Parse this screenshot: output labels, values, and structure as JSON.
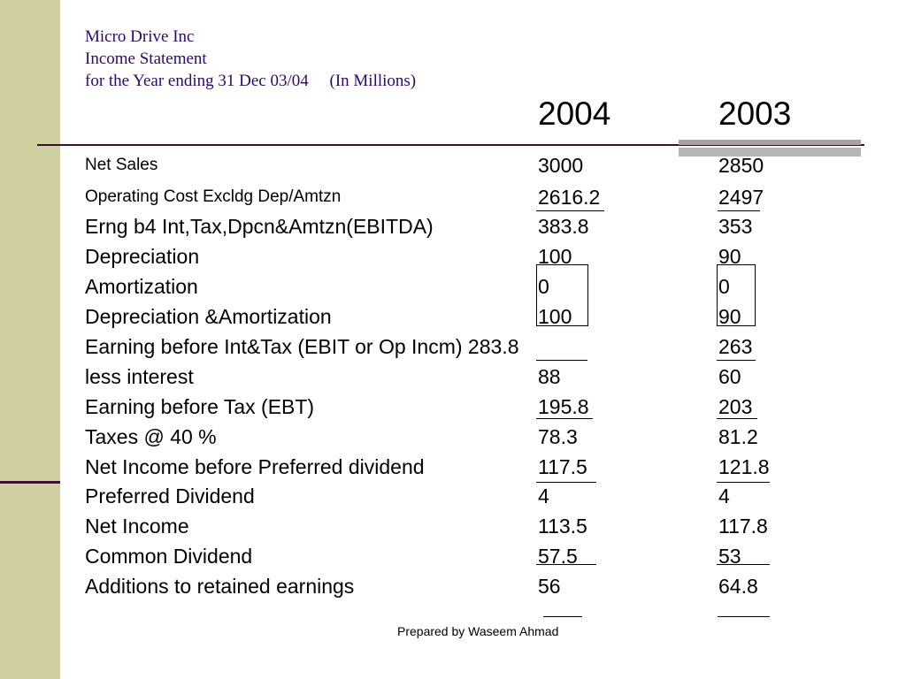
{
  "heading": {
    "company": "Micro Drive Inc",
    "statement": "Income Statement",
    "period": "for the Year ending 31 Dec 03/04     (In Millions)"
  },
  "years": [
    "2004",
    "2003"
  ],
  "rows": [
    {
      "label": "Net Sales",
      "v2004": "3000",
      "v2003": "2850"
    },
    {
      "label": "Operating Cost Excldg Dep/Amtzn",
      "v2004": "2616.2",
      "v2003": "2497"
    },
    {
      "label": "Erng b4 Int,Tax,Dpcn&Amtzn(EBITDA)",
      "v2004": "383.8",
      "v2003": "353"
    },
    {
      "label": "Depreciation",
      "v2004": "100",
      "v2003": "90"
    },
    {
      "label": "Amortization",
      "v2004": "0",
      "v2003": "0"
    },
    {
      "label": "Depreciation &Amortization",
      "v2004": "100",
      "v2003": "90"
    },
    {
      "label": "Earning before Int&Tax (EBIT or Op Incm) 283.8",
      "v2004": "",
      "v2003": "263"
    },
    {
      "label": "less interest",
      "v2004": "88",
      "v2003": "60"
    },
    {
      "label": "Earning before Tax (EBT)",
      "v2004": "195.8",
      "v2003": "203"
    },
    {
      "label": "Taxes @ 40 %",
      "v2004": "78.3",
      "v2003": "81.2"
    },
    {
      "label": "Net Income before Preferred dividend",
      "v2004": "117.5",
      "v2003": "121.8"
    },
    {
      "label": "Preferred Dividend",
      "v2004": "4",
      "v2003": "4"
    },
    {
      "label": "Net Income",
      "v2004": "113.5",
      "v2003": "117.8"
    },
    {
      "label": "Common Dividend",
      "v2004": "57.5",
      "v2003": "53"
    },
    {
      "label": "Additions to retained earnings",
      "v2004": "56",
      "v2003": "64.8"
    }
  ],
  "footer": "Prepared by Waseem Ahmad"
}
